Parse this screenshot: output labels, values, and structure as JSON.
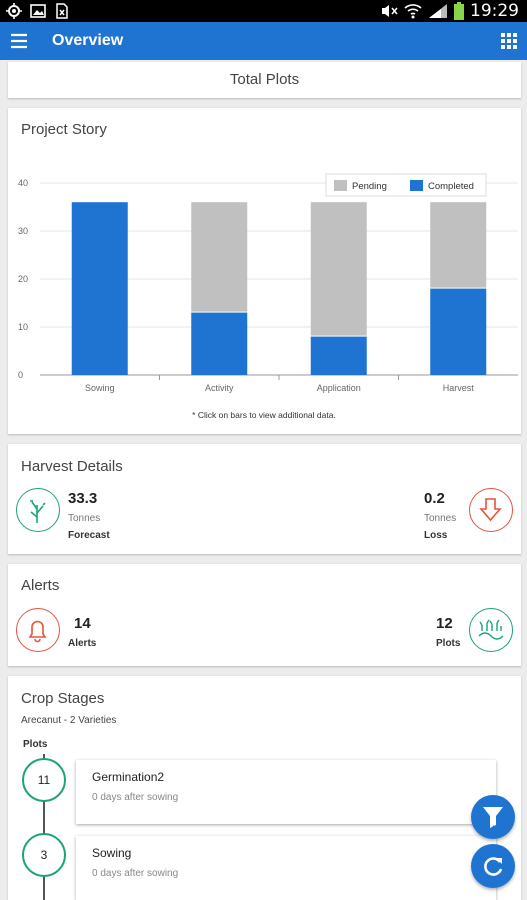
{
  "status_bar": {
    "time": "19:29",
    "left_icons": [
      "location-icon",
      "image-icon",
      "excel-icon"
    ],
    "right_icons": [
      "mute-icon",
      "wifi-icon",
      "signal-icon",
      "battery-icon"
    ]
  },
  "app_bar": {
    "title": "Overview",
    "menu_icon": "hamburger-icon",
    "apps_icon": "grid-icon"
  },
  "total_plots": {
    "label": "Total Plots"
  },
  "project_story": {
    "title": "Project Story",
    "footnote": "* Click on bars to view additional data.",
    "chart_data": {
      "type": "bar",
      "stacked": true,
      "categories": [
        "Sowing",
        "Activity",
        "Application",
        "Harvest"
      ],
      "series": [
        {
          "name": "Completed",
          "color": "#1f73d1",
          "values": [
            36,
            13,
            8,
            18
          ]
        },
        {
          "name": "Pending",
          "color": "#c0c0c0",
          "values": [
            0,
            23,
            28,
            18
          ]
        }
      ],
      "ylim": [
        0,
        40
      ],
      "yticks": [
        "0",
        "10",
        "20",
        "30",
        "40"
      ],
      "legend_placement": "top-right",
      "legend_order": [
        "Pending",
        "Completed"
      ],
      "grid": true
    }
  },
  "harvest_details": {
    "title": "Harvest Details",
    "forecast": {
      "value": "33.3",
      "unit": "Tonnes",
      "label": "Forecast",
      "icon": "crop-icon"
    },
    "loss": {
      "value": "0.2",
      "unit": "Tonnes",
      "label": "Loss",
      "icon": "down-arrow-icon"
    }
  },
  "alerts": {
    "title": "Alerts",
    "alerts": {
      "value": "14",
      "label": "Alerts",
      "icon": "bell-icon"
    },
    "plots": {
      "value": "12",
      "label": "Plots",
      "icon": "field-icon"
    }
  },
  "crop_stages": {
    "title": "Crop Stages",
    "subtitle": "Arecanut - 2 Varieties",
    "plots_label": "Plots",
    "stages": [
      {
        "count": "11",
        "name": "Germination2",
        "sub": "0 days after sowing"
      },
      {
        "count": "3",
        "name": "Sowing",
        "sub": "0 days after sowing"
      }
    ]
  },
  "fabs": [
    {
      "name": "filter-fab",
      "icon": "filter-icon"
    },
    {
      "name": "refresh-fab",
      "icon": "refresh-icon"
    }
  ]
}
